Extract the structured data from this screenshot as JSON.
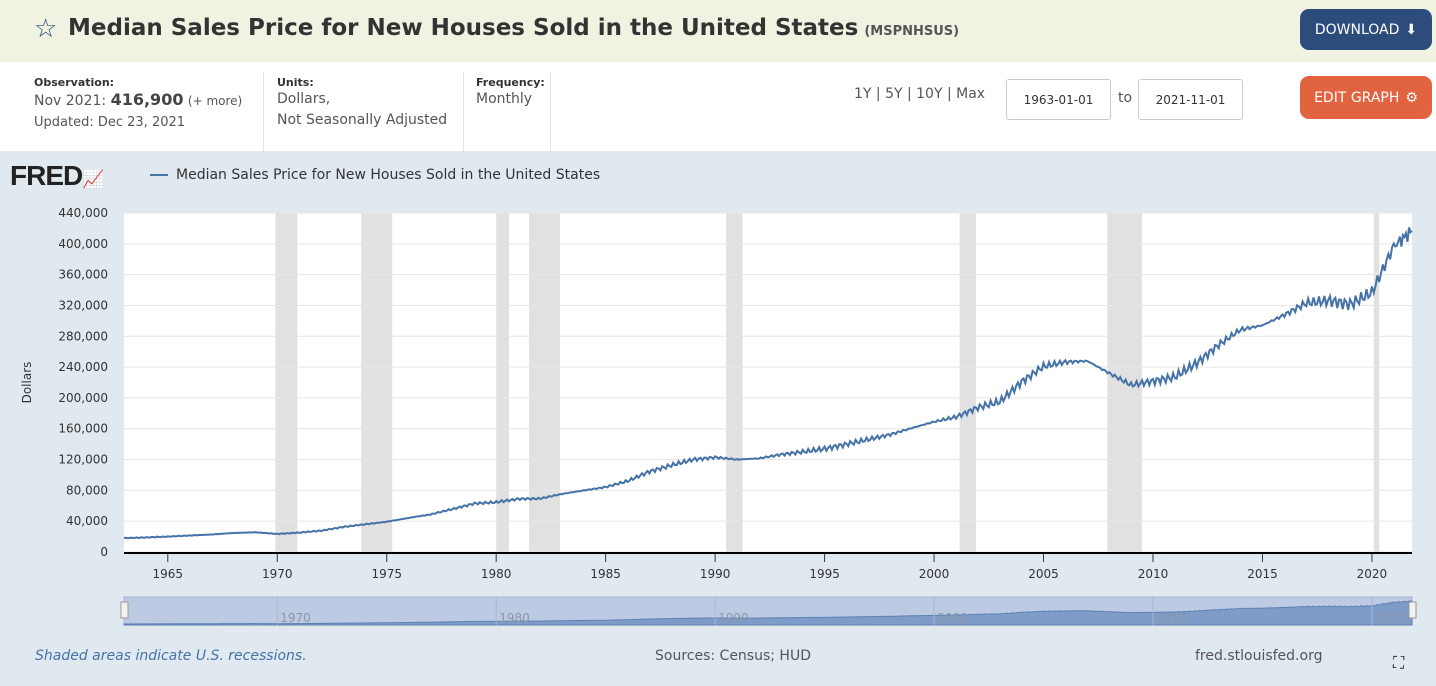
{
  "header": {
    "title": "Median Sales Price for New Houses Sold in the United States",
    "series_id": "(MSPNHSUS)",
    "download_label": "DOWNLOAD"
  },
  "meta": {
    "observation_label": "Observation:",
    "observation_date": "Nov 2021:",
    "observation_value": "416,900",
    "more": "(+ more)",
    "updated": "Updated: Dec 23, 2021",
    "units_label": "Units:",
    "units_line1": "Dollars,",
    "units_line2": "Not Seasonally Adjusted",
    "frequency_label": "Frequency:",
    "frequency": "Monthly",
    "ranges": "1Y | 5Y | 10Y | Max",
    "start_date": "1963-01-01",
    "to": "to",
    "end_date": "2021-11-01",
    "edit_label": "EDIT GRAPH"
  },
  "footer": {
    "recession_note": "Shaded areas indicate U.S. recessions.",
    "sources": "Sources: Census; HUD",
    "site": "fred.stlouisfed.org"
  },
  "logo": "FRED",
  "colors": {
    "line": "#4572a7",
    "recession": "#e1e1e1",
    "download": "#2c4c7c",
    "edit": "#e2633f"
  },
  "chart_data": {
    "type": "line",
    "title": "",
    "legend": "Median Sales Price for New Houses Sold in the United States",
    "ylabel": "Dollars",
    "xlim": [
      1963.0,
      2021.83
    ],
    "ylim": [
      0,
      440000
    ],
    "yticks": [
      0,
      40000,
      80000,
      120000,
      160000,
      200000,
      240000,
      280000,
      320000,
      360000,
      400000,
      440000
    ],
    "ytick_labels": [
      "0",
      "40,000",
      "80,000",
      "120,000",
      "160,000",
      "200,000",
      "240,000",
      "280,000",
      "320,000",
      "360,000",
      "400,000",
      "440,000"
    ],
    "xticks": [
      "1965",
      "1970",
      "1975",
      "1980",
      "1985",
      "1990",
      "1995",
      "2000",
      "2005",
      "2010",
      "2015",
      "2020"
    ],
    "navigator_labels": [
      "1970",
      "1980",
      "1990",
      "2000",
      "2010",
      "2020"
    ],
    "recessions": [
      [
        "1969-12",
        "1970-11"
      ],
      [
        "1973-11",
        "1975-03"
      ],
      [
        "1980-01",
        "1980-07"
      ],
      [
        "1981-07",
        "1982-11"
      ],
      [
        "1990-07",
        "1991-03"
      ],
      [
        "2001-03",
        "2001-11"
      ],
      [
        "2007-12",
        "2009-06"
      ],
      [
        "2020-02",
        "2020-04"
      ]
    ],
    "x": [
      1963,
      1964,
      1965,
      1966,
      1967,
      1968,
      1969,
      1970,
      1971,
      1972,
      1973,
      1974,
      1975,
      1976,
      1977,
      1978,
      1979,
      1980,
      1981,
      1982,
      1983,
      1984,
      1985,
      1986,
      1987,
      1988,
      1989,
      1990,
      1991,
      1992,
      1993,
      1994,
      1995,
      1996,
      1997,
      1998,
      1999,
      2000,
      2001,
      2002,
      2003,
      2004,
      2005,
      2006,
      2007,
      2008,
      2009,
      2010,
      2011,
      2012,
      2013,
      2014,
      2015,
      2016,
      2017,
      2018,
      2019,
      2020,
      2021,
      2021.83
    ],
    "y": [
      18000,
      18900,
      20000,
      21400,
      22700,
      24700,
      25600,
      23400,
      25200,
      27600,
      32500,
      35900,
      39300,
      44200,
      48800,
      55700,
      62900,
      64600,
      68900,
      69300,
      75300,
      79900,
      84300,
      92000,
      104500,
      112500,
      120000,
      122900,
      120000,
      121500,
      126500,
      130000,
      133900,
      140000,
      146000,
      152500,
      161000,
      169000,
      175200,
      187600,
      195000,
      221000,
      240900,
      246500,
      247900,
      232100,
      216700,
      221800,
      227200,
      245200,
      268900,
      288500,
      294200,
      307800,
      323100,
      326400,
      321500,
      336900,
      397100,
      416900
    ]
  }
}
